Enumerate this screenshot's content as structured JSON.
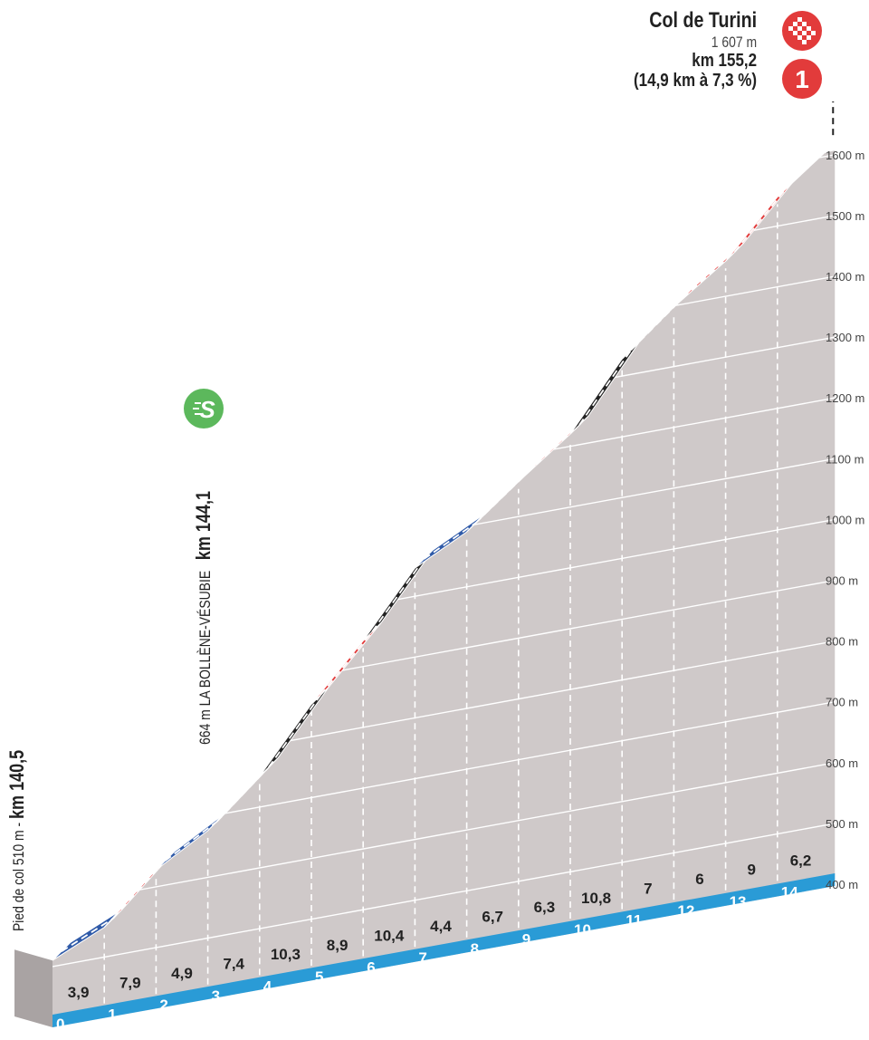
{
  "summit": {
    "name": "Col de Turini",
    "altitude": "1 607 m",
    "km": "km 155,2",
    "climb": "(14,9 km à 7,3 %)",
    "category": "1",
    "colors": {
      "category": "#e23b3b",
      "finish_flag": "#e23b3b"
    }
  },
  "start_label": {
    "text_prefix": "Pied de col  510 m - ",
    "text_km": "km 140,5"
  },
  "sprint": {
    "icon": "sprint-icon",
    "letter": "S",
    "altitude_label": "664 m  LA BOLLÈNE-VÉSUBIE",
    "km": "km 144,1",
    "color": "#5cb85c"
  },
  "chart_data": {
    "type": "area",
    "title": "",
    "x_unit": "km",
    "y_unit": "m",
    "ylim": [
      400,
      1607
    ],
    "xlim": [
      0,
      14.9
    ],
    "y_ticks": [
      "400 m",
      "500 m",
      "600 m",
      "700 m",
      "800 m",
      "900 m",
      "1000 m",
      "1100 m",
      "1200 m",
      "1300 m",
      "1400 m",
      "1500 m",
      "1600 m"
    ],
    "y_tick_values": [
      400,
      500,
      600,
      700,
      800,
      900,
      1000,
      1100,
      1200,
      1300,
      1400,
      1500,
      1600
    ],
    "x_ticks": [
      "0",
      "1",
      "2",
      "3",
      "4",
      "5",
      "6",
      "7",
      "8",
      "9",
      "10",
      "11",
      "12",
      "13",
      "14"
    ],
    "segments": [
      {
        "km_start": 0,
        "km_end": 1,
        "gradient": "3,9",
        "elev_start": 510,
        "elev_end": 549,
        "color": "#2f5aa8"
      },
      {
        "km_start": 1,
        "km_end": 2,
        "gradient": "7,9",
        "elev_start": 549,
        "elev_end": 628,
        "color": "#e23b3b"
      },
      {
        "km_start": 2,
        "km_end": 3,
        "gradient": "4,9",
        "elev_start": 628,
        "elev_end": 677,
        "color": "#2f5aa8"
      },
      {
        "km_start": 3,
        "km_end": 4,
        "gradient": "7,4",
        "elev_start": 677,
        "elev_end": 751,
        "color": "#e23b3b"
      },
      {
        "km_start": 4,
        "km_end": 5,
        "gradient": "10,3",
        "elev_start": 751,
        "elev_end": 854,
        "color": "#222222"
      },
      {
        "km_start": 5,
        "km_end": 6,
        "gradient": "8,9",
        "elev_start": 854,
        "elev_end": 943,
        "color": "#e23b3b"
      },
      {
        "km_start": 6,
        "km_end": 7,
        "gradient": "10,4",
        "elev_start": 943,
        "elev_end": 1047,
        "color": "#222222"
      },
      {
        "km_start": 7,
        "km_end": 8,
        "gradient": "4,4",
        "elev_start": 1047,
        "elev_end": 1091,
        "color": "#2f5aa8"
      },
      {
        "km_start": 8,
        "km_end": 9,
        "gradient": "6,7",
        "elev_start": 1091,
        "elev_end": 1158,
        "color": "#e23b3b"
      },
      {
        "km_start": 9,
        "km_end": 10,
        "gradient": "6,3",
        "elev_start": 1158,
        "elev_end": 1221,
        "color": "#e23b3b"
      },
      {
        "km_start": 10,
        "km_end": 11,
        "gradient": "10,8",
        "elev_start": 1221,
        "elev_end": 1329,
        "color": "#222222"
      },
      {
        "km_start": 11,
        "km_end": 12,
        "gradient": "7",
        "elev_start": 1329,
        "elev_end": 1399,
        "color": "#e23b3b"
      },
      {
        "km_start": 12,
        "km_end": 13,
        "gradient": "6",
        "elev_start": 1399,
        "elev_end": 1459,
        "color": "#e23b3b"
      },
      {
        "km_start": 13,
        "km_end": 14,
        "gradient": "9",
        "elev_start": 1459,
        "elev_end": 1549,
        "color": "#e23b3b"
      },
      {
        "km_start": 14,
        "km_end": 14.9,
        "gradient": "6,2",
        "elev_start": 1549,
        "elev_end": 1607,
        "color": "#e23b3b"
      }
    ],
    "colors": {
      "ground": "#cfc9c9",
      "ground_dark": "#a9a3a3",
      "baseline": "#2a9bd6"
    }
  }
}
